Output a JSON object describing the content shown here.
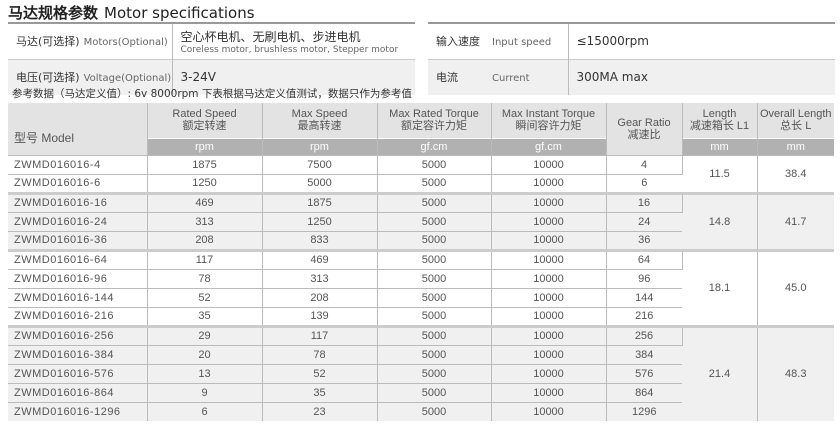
{
  "title": {
    "cn": "马达规格参数",
    "en": "Motor specifications"
  },
  "specs_left": [
    {
      "label_cn": "马达(可选择)",
      "label_en": "Motors(Optional)",
      "value": "空心杯电机、无刷电机、步进电机",
      "value_sub": "Coreless motor, brushless motor, Stepper motor"
    },
    {
      "label_cn": "电压(可选择)",
      "label_en": "Voltage(Optional)",
      "value": "3-24V",
      "value_sub": ""
    }
  ],
  "specs_right": [
    {
      "label_cn": "输入速度",
      "label_en": "Input speed",
      "value": "≤15000rpm"
    },
    {
      "label_cn": "电流",
      "label_en": "Current",
      "value": "300MA max"
    }
  ],
  "note": "参考数据（马达定义值）: 6v  8000rpm    下表根据马达定义值测试，数据只作为参考值",
  "table": {
    "model_header": "型号 Model",
    "columns": [
      {
        "en": "Rated Speed",
        "cn": "额定转速",
        "unit": "rpm"
      },
      {
        "en": "Max Speed",
        "cn": "最高转速",
        "unit": "rpm"
      },
      {
        "en": "Max Rated Torque",
        "cn": "额定容许力矩",
        "unit": "gf.cm"
      },
      {
        "en": "Max Instant Torque",
        "cn": "瞬间容许力矩",
        "unit": "gf.cm"
      },
      {
        "en": "Gear Ratio",
        "cn": "减速比",
        "unit": ""
      },
      {
        "en": "Length",
        "cn": "减速箱长 L1",
        "unit": "mm"
      },
      {
        "en": "Overall Length",
        "cn": "总长 L",
        "unit": "mm"
      }
    ],
    "groups": [
      {
        "length": "11.5",
        "overall": "38.4",
        "rows": [
          [
            "ZWMD016016-4",
            "1875",
            "7500",
            "5000",
            "10000",
            "4"
          ],
          [
            "ZWMD016016-6",
            "1250",
            "5000",
            "5000",
            "10000",
            "6"
          ]
        ]
      },
      {
        "length": "14.8",
        "overall": "41.7",
        "rows": [
          [
            "ZWMD016016-16",
            "469",
            "1875",
            "5000",
            "10000",
            "16"
          ],
          [
            "ZWMD016016-24",
            "313",
            "1250",
            "5000",
            "10000",
            "24"
          ],
          [
            "ZWMD016016-36",
            "208",
            "833",
            "5000",
            "10000",
            "36"
          ]
        ]
      },
      {
        "length": "18.1",
        "overall": "45.0",
        "rows": [
          [
            "ZWMD016016-64",
            "117",
            "469",
            "5000",
            "10000",
            "64"
          ],
          [
            "ZWMD016016-96",
            "78",
            "313",
            "5000",
            "10000",
            "96"
          ],
          [
            "ZWMD016016-144",
            "52",
            "208",
            "5000",
            "10000",
            "144"
          ],
          [
            "ZWMD016016-216",
            "35",
            "139",
            "5000",
            "10000",
            "216"
          ]
        ]
      },
      {
        "length": "21.4",
        "overall": "48.3",
        "rows": [
          [
            "ZWMD016016-256",
            "29",
            "117",
            "5000",
            "10000",
            "256"
          ],
          [
            "ZWMD016016-384",
            "20",
            "78",
            "5000",
            "10000",
            "384"
          ],
          [
            "ZWMD016016-576",
            "13",
            "52",
            "5000",
            "10000",
            "576"
          ],
          [
            "ZWMD016016-864",
            "9",
            "35",
            "5000",
            "10000",
            "864"
          ],
          [
            "ZWMD016016-1296",
            "6",
            "23",
            "5000",
            "10000",
            "1296"
          ]
        ]
      }
    ]
  }
}
